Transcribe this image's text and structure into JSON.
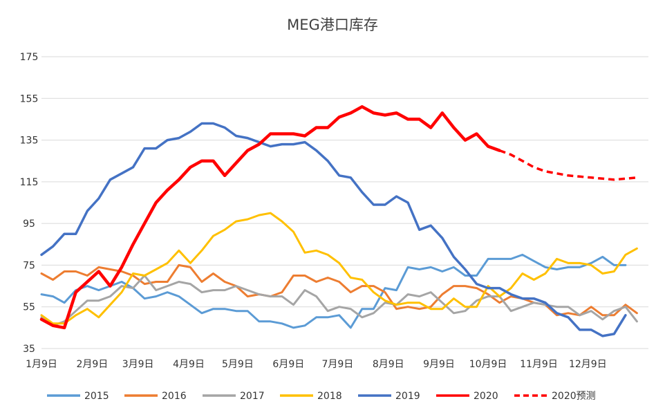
{
  "chart_data": {
    "type": "line",
    "title": "MEG港口库存",
    "xlabel": "",
    "ylabel": "",
    "ylim": [
      35,
      175
    ],
    "y_ticks": [
      35,
      55,
      75,
      95,
      115,
      135,
      155,
      175
    ],
    "x_range": [
      0,
      53
    ],
    "x_ticks": [
      {
        "label": "1月9日",
        "x": 0
      },
      {
        "label": "2月9日",
        "x": 4.43
      },
      {
        "label": "3月9日",
        "x": 8.43
      },
      {
        "label": "4月9日",
        "x": 12.86
      },
      {
        "label": "5月9日",
        "x": 17.14
      },
      {
        "label": "6月9日",
        "x": 21.57
      },
      {
        "label": "7月9日",
        "x": 25.86
      },
      {
        "label": "8月9日",
        "x": 30.29
      },
      {
        "label": "9月9日",
        "x": 34.71
      },
      {
        "label": "10月9日",
        "x": 39
      },
      {
        "label": "11月9日",
        "x": 43.43
      },
      {
        "label": "12月9日",
        "x": 47.71
      }
    ],
    "grid": "horizontal",
    "legend_position": "bottom",
    "series": [
      {
        "name": "2015",
        "color": "#5B9BD5",
        "width": 3,
        "dash": false,
        "values": [
          61,
          60,
          57,
          63,
          65,
          63,
          65,
          67,
          64,
          59,
          60,
          62,
          60,
          56,
          52,
          54,
          54,
          53,
          53,
          48,
          48,
          47,
          45,
          46,
          50,
          50,
          51,
          45,
          54,
          54,
          64,
          63,
          74,
          73,
          74,
          72,
          74,
          70,
          70,
          78,
          78,
          78,
          80,
          77,
          74,
          73,
          74,
          74,
          76,
          79,
          75,
          75
        ]
      },
      {
        "name": "2016",
        "color": "#ED7D31",
        "width": 3,
        "dash": false,
        "values": [
          71,
          68,
          72,
          72,
          70,
          74,
          73,
          72,
          70,
          66,
          67,
          67,
          75,
          74,
          67,
          71,
          67,
          65,
          60,
          61,
          60,
          62,
          70,
          70,
          67,
          69,
          67,
          62,
          65,
          65,
          62,
          54,
          55,
          54,
          55,
          61,
          65,
          65,
          64,
          61,
          57,
          60,
          59,
          57,
          56,
          51,
          52,
          51,
          55,
          51,
          51,
          56,
          52
        ]
      },
      {
        "name": "2017",
        "color": "#A5A5A5",
        "width": 3,
        "dash": false,
        "values": [
          50,
          46,
          48,
          53,
          58,
          58,
          60,
          65,
          64,
          70,
          63,
          65,
          67,
          66,
          62,
          63,
          63,
          65,
          63,
          61,
          60,
          60,
          56,
          63,
          60,
          53,
          55,
          54,
          50,
          52,
          57,
          56,
          61,
          60,
          62,
          57,
          52,
          53,
          58,
          60,
          60,
          53,
          55,
          57,
          56,
          55,
          55,
          51,
          53,
          49,
          53,
          55,
          48
        ]
      },
      {
        "name": "2018",
        "color": "#FFC000",
        "width": 3,
        "dash": false,
        "values": [
          51,
          47,
          47,
          51,
          54,
          50,
          56,
          62,
          71,
          70,
          73,
          76,
          82,
          76,
          82,
          89,
          92,
          96,
          97,
          99,
          100,
          96,
          91,
          81,
          82,
          80,
          76,
          69,
          68,
          62,
          58,
          56,
          57,
          57,
          54,
          54,
          59,
          55,
          55,
          65,
          60,
          64,
          71,
          68,
          71,
          78,
          76,
          76,
          75,
          71,
          72,
          80,
          83
        ]
      },
      {
        "name": "2019",
        "color": "#4472C4",
        "width": 3.5,
        "dash": false,
        "values": [
          80,
          84,
          90,
          90,
          101,
          107,
          116,
          119,
          122,
          131,
          131,
          135,
          136,
          139,
          143,
          143,
          141,
          137,
          136,
          134,
          132,
          133,
          133,
          134,
          130,
          125,
          118,
          117,
          110,
          104,
          104,
          108,
          105,
          92,
          94,
          88,
          79,
          73,
          66,
          64,
          64,
          61,
          59,
          59,
          57,
          52,
          50,
          44,
          44,
          41,
          42,
          51
        ]
      },
      {
        "name": "2020",
        "color": "#FF0000",
        "width": 4.5,
        "dash": false,
        "values": [
          49,
          46,
          45,
          62,
          67,
          72,
          65,
          74,
          85,
          95,
          105,
          111,
          116,
          122,
          125,
          125,
          118,
          124,
          130,
          133,
          138,
          138,
          138,
          137,
          141,
          141,
          146,
          148,
          151,
          148,
          147,
          148,
          145,
          145,
          141,
          148,
          141,
          135,
          138,
          132,
          130
        ]
      },
      {
        "name": "2020预测",
        "color": "#FF0000",
        "width": 3.5,
        "dash": true,
        "start_index": 40,
        "values": [
          130,
          128,
          125,
          122,
          120,
          119,
          118,
          117.5,
          117,
          116.5,
          116,
          116.5,
          117
        ]
      }
    ]
  }
}
